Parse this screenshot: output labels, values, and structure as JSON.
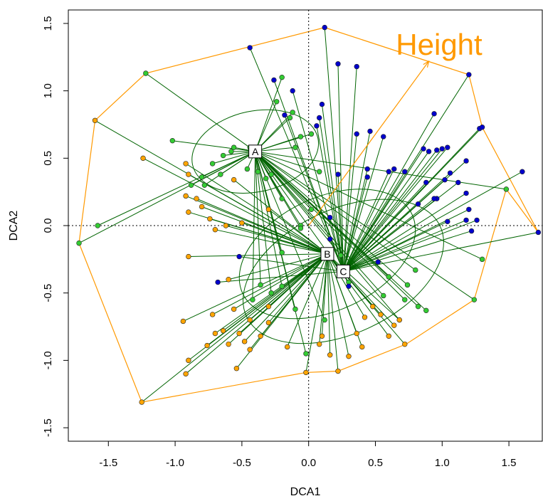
{
  "chart_data": {
    "type": "scatter",
    "title": "",
    "xlabel": "DCA1",
    "ylabel": "DCA2",
    "xlim": [
      -1.8,
      1.75
    ],
    "ylim": [
      -1.6,
      1.6
    ],
    "xticks": [
      -1.5,
      -1.0,
      -0.5,
      0.0,
      0.5,
      1.0,
      1.5
    ],
    "yticks": [
      -1.5,
      -1.0,
      -0.5,
      0.0,
      0.5,
      1.0,
      1.5
    ],
    "xtick_labels": [
      "-1.5",
      "-1.0",
      "-0.5",
      "0.0",
      "0.5",
      "1.0",
      "1.5"
    ],
    "ytick_labels": [
      "-1.5",
      "-1.0",
      "-0.5",
      "0.0",
      "0.5",
      "1.0",
      "1.5"
    ],
    "reference_lines": {
      "x": 0,
      "y": 0
    },
    "grid": false,
    "colors": {
      "group_a": "#33cc33",
      "group_b": "#ffa500",
      "group_c": "#0000cc",
      "spider": "#006400",
      "hull": "#ff9900",
      "arrow": "#ff9900"
    },
    "centroids": [
      {
        "label": "A",
        "x": -0.4,
        "y": 0.55,
        "ellipse": {
          "rx": 0.48,
          "ry": 0.3,
          "angle": 12
        }
      },
      {
        "label": "B",
        "x": 0.14,
        "y": -0.21,
        "ellipse": {
          "rx": 0.7,
          "ry": 0.42,
          "angle": 25
        }
      },
      {
        "label": "C",
        "x": 0.26,
        "y": -0.34,
        "ellipse": {
          "rx": 0.8,
          "ry": 0.46,
          "angle": 25
        }
      }
    ],
    "vector": {
      "label": "Height",
      "x": 0.9,
      "y": 1.22
    },
    "hull": [
      [
        0.12,
        1.47
      ],
      [
        1.2,
        1.12
      ],
      [
        1.3,
        0.73
      ],
      [
        1.72,
        -0.05
      ],
      [
        1.48,
        0.27
      ],
      [
        1.24,
        -0.55
      ],
      [
        0.73,
        -0.88
      ],
      [
        0.22,
        -1.08
      ],
      [
        -0.02,
        -1.09
      ],
      [
        -1.25,
        -1.31
      ],
      [
        -1.72,
        -0.13
      ],
      [
        -1.6,
        0.78
      ],
      [
        -1.22,
        1.13
      ]
    ],
    "points": [
      {
        "x": -0.44,
        "y": 0.58,
        "g": "a"
      },
      {
        "x": -0.2,
        "y": 1.1,
        "g": "a"
      },
      {
        "x": -0.24,
        "y": 0.92,
        "g": "a"
      },
      {
        "x": -0.38,
        "y": 0.4,
        "g": "a"
      },
      {
        "x": -0.12,
        "y": 0.84,
        "g": "a"
      },
      {
        "x": -0.32,
        "y": 0.35,
        "g": "a"
      },
      {
        "x": -0.2,
        "y": 0.2,
        "g": "a"
      },
      {
        "x": -0.1,
        "y": 0.58,
        "g": "a"
      },
      {
        "x": -0.56,
        "y": 0.58,
        "g": "a"
      },
      {
        "x": -0.64,
        "y": 0.52,
        "g": "a"
      },
      {
        "x": -0.72,
        "y": 0.46,
        "g": "a"
      },
      {
        "x": -0.8,
        "y": 0.36,
        "g": "a"
      },
      {
        "x": -0.88,
        "y": 0.3,
        "g": "a"
      },
      {
        "x": -0.66,
        "y": 0.38,
        "g": "a"
      },
      {
        "x": -0.46,
        "y": 0.42,
        "g": "a"
      },
      {
        "x": -0.28,
        "y": 0.38,
        "g": "a"
      },
      {
        "x": -0.06,
        "y": 0.66,
        "g": "a"
      },
      {
        "x": 0.02,
        "y": 0.68,
        "g": "a"
      },
      {
        "x": -1.02,
        "y": 0.63,
        "g": "a"
      },
      {
        "x": -0.78,
        "y": 0.3,
        "g": "a"
      },
      {
        "x": 0.02,
        "y": 0.12,
        "g": "a"
      },
      {
        "x": 0.08,
        "y": 0.4,
        "g": "a"
      },
      {
        "x": -0.14,
        "y": 0.8,
        "g": "a"
      },
      {
        "x": -0.58,
        "y": 0.55,
        "g": "a"
      },
      {
        "x": -0.06,
        "y": 0.0,
        "g": "a"
      },
      {
        "x": -1.22,
        "y": 1.13,
        "g": "a"
      },
      {
        "x": -1.72,
        "y": -0.13,
        "g": "a"
      },
      {
        "x": -1.58,
        "y": 0.0,
        "g": "a"
      },
      {
        "x": 1.48,
        "y": 0.27,
        "g": "a"
      },
      {
        "x": 1.3,
        "y": -0.25,
        "g": "a"
      },
      {
        "x": 1.24,
        "y": -0.55,
        "g": "a"
      },
      {
        "x": 0.8,
        "y": -0.33,
        "g": "a"
      },
      {
        "x": 0.74,
        "y": -0.44,
        "g": "a"
      },
      {
        "x": 0.72,
        "y": -0.55,
        "g": "a"
      },
      {
        "x": 0.82,
        "y": -0.6,
        "g": "a"
      },
      {
        "x": 0.88,
        "y": -0.63,
        "g": "a"
      },
      {
        "x": 0.6,
        "y": -0.38,
        "g": "a"
      },
      {
        "x": 0.56,
        "y": -0.52,
        "g": "a"
      },
      {
        "x": 0.68,
        "y": -0.7,
        "g": "a"
      },
      {
        "x": -0.28,
        "y": -0.5,
        "g": "a"
      },
      {
        "x": -0.36,
        "y": -0.44,
        "g": "a"
      },
      {
        "x": -0.42,
        "y": -0.55,
        "g": "a"
      },
      {
        "x": -0.2,
        "y": -0.45,
        "g": "a"
      },
      {
        "x": -0.2,
        "y": -0.2,
        "g": "a"
      },
      {
        "x": -0.1,
        "y": -0.62,
        "g": "a"
      },
      {
        "x": 0.12,
        "y": -0.7,
        "g": "a"
      },
      {
        "x": -0.02,
        "y": -0.95,
        "g": "a"
      },
      {
        "x": -0.06,
        "y": -0.02,
        "g": "a"
      },
      {
        "x": 0.24,
        "y": -0.22,
        "g": "a"
      },
      {
        "x": 0.3,
        "y": -0.42,
        "g": "a"
      },
      {
        "x": -1.24,
        "y": 0.5,
        "g": "b"
      },
      {
        "x": -1.6,
        "y": 0.78,
        "g": "b"
      },
      {
        "x": -0.92,
        "y": 0.46,
        "g": "b"
      },
      {
        "x": -0.9,
        "y": 0.38,
        "g": "b"
      },
      {
        "x": -0.84,
        "y": 0.2,
        "g": "b"
      },
      {
        "x": -0.9,
        "y": 0.1,
        "g": "b"
      },
      {
        "x": -0.92,
        "y": 0.22,
        "g": "b"
      },
      {
        "x": -0.8,
        "y": 0.14,
        "g": "b"
      },
      {
        "x": -0.74,
        "y": 0.05,
        "g": "b"
      },
      {
        "x": -0.7,
        "y": -0.03,
        "g": "b"
      },
      {
        "x": -0.62,
        "y": 0.0,
        "g": "b"
      },
      {
        "x": -0.5,
        "y": 0.02,
        "g": "b"
      },
      {
        "x": -0.56,
        "y": 0.34,
        "g": "b"
      },
      {
        "x": -0.3,
        "y": 0.12,
        "g": "b"
      },
      {
        "x": -0.94,
        "y": -0.71,
        "g": "b"
      },
      {
        "x": -0.9,
        "y": -0.23,
        "g": "b"
      },
      {
        "x": -0.9,
        "y": -1.0,
        "g": "b"
      },
      {
        "x": -0.92,
        "y": -1.1,
        "g": "b"
      },
      {
        "x": -1.25,
        "y": -1.31,
        "g": "b"
      },
      {
        "x": -0.76,
        "y": -0.89,
        "g": "b"
      },
      {
        "x": -0.7,
        "y": -0.8,
        "g": "b"
      },
      {
        "x": -0.72,
        "y": -0.66,
        "g": "b"
      },
      {
        "x": -0.64,
        "y": -0.78,
        "g": "b"
      },
      {
        "x": -0.6,
        "y": -0.88,
        "g": "b"
      },
      {
        "x": -0.52,
        "y": -0.8,
        "g": "b"
      },
      {
        "x": -0.44,
        "y": -0.92,
        "g": "b"
      },
      {
        "x": -0.36,
        "y": -0.82,
        "g": "b"
      },
      {
        "x": -0.3,
        "y": -0.72,
        "g": "b"
      },
      {
        "x": -0.16,
        "y": -0.9,
        "g": "b"
      },
      {
        "x": -0.02,
        "y": -1.09,
        "g": "b"
      },
      {
        "x": -0.54,
        "y": -1.06,
        "g": "b"
      },
      {
        "x": 0.1,
        "y": -0.82,
        "g": "b"
      },
      {
        "x": 0.16,
        "y": -0.96,
        "g": "b"
      },
      {
        "x": 0.22,
        "y": -1.08,
        "g": "b"
      },
      {
        "x": 0.3,
        "y": -0.97,
        "g": "b"
      },
      {
        "x": 0.36,
        "y": -0.8,
        "g": "b"
      },
      {
        "x": 0.42,
        "y": -0.68,
        "g": "b"
      },
      {
        "x": 0.48,
        "y": -0.6,
        "g": "b"
      },
      {
        "x": 0.4,
        "y": -0.9,
        "g": "b"
      },
      {
        "x": 0.6,
        "y": -0.82,
        "g": "b"
      },
      {
        "x": 0.64,
        "y": -0.74,
        "g": "b"
      },
      {
        "x": 0.72,
        "y": -0.88,
        "g": "b"
      },
      {
        "x": 0.54,
        "y": -0.66,
        "g": "b"
      },
      {
        "x": -0.56,
        "y": -0.62,
        "g": "b"
      },
      {
        "x": -0.6,
        "y": -0.4,
        "g": "b"
      },
      {
        "x": -0.3,
        "y": -0.6,
        "g": "b"
      },
      {
        "x": -0.44,
        "y": -0.7,
        "g": "b"
      },
      {
        "x": -0.48,
        "y": -0.86,
        "g": "b"
      },
      {
        "x": 0.08,
        "y": -0.88,
        "g": "b"
      },
      {
        "x": 0.68,
        "y": -0.7,
        "g": "b"
      },
      {
        "x": 0.12,
        "y": 1.47,
        "g": "c"
      },
      {
        "x": -0.44,
        "y": 1.32,
        "g": "c"
      },
      {
        "x": 0.22,
        "y": 1.2,
        "g": "c"
      },
      {
        "x": 0.36,
        "y": 1.18,
        "g": "c"
      },
      {
        "x": 1.2,
        "y": 1.12,
        "g": "c"
      },
      {
        "x": -0.26,
        "y": 1.08,
        "g": "c"
      },
      {
        "x": -0.12,
        "y": 1.0,
        "g": "c"
      },
      {
        "x": 0.1,
        "y": 0.9,
        "g": "c"
      },
      {
        "x": 0.08,
        "y": 0.8,
        "g": "c"
      },
      {
        "x": -0.18,
        "y": 0.82,
        "g": "c"
      },
      {
        "x": 0.06,
        "y": 0.74,
        "g": "c"
      },
      {
        "x": 0.36,
        "y": 0.68,
        "g": "c"
      },
      {
        "x": 0.46,
        "y": 0.7,
        "g": "c"
      },
      {
        "x": 0.56,
        "y": 0.66,
        "g": "c"
      },
      {
        "x": 0.94,
        "y": 0.83,
        "g": "c"
      },
      {
        "x": 1.28,
        "y": 0.72,
        "g": "c"
      },
      {
        "x": 1.3,
        "y": 0.73,
        "g": "c"
      },
      {
        "x": 1.6,
        "y": 0.4,
        "g": "c"
      },
      {
        "x": 1.72,
        "y": -0.05,
        "g": "c"
      },
      {
        "x": 0.9,
        "y": 0.55,
        "g": "c"
      },
      {
        "x": 0.96,
        "y": 0.56,
        "g": "c"
      },
      {
        "x": 1.0,
        "y": 0.57,
        "g": "c"
      },
      {
        "x": 1.04,
        "y": 0.58,
        "g": "c"
      },
      {
        "x": 0.86,
        "y": 0.57,
        "g": "c"
      },
      {
        "x": 1.18,
        "y": 0.48,
        "g": "c"
      },
      {
        "x": 0.64,
        "y": 0.42,
        "g": "c"
      },
      {
        "x": 0.6,
        "y": 0.4,
        "g": "c"
      },
      {
        "x": 0.44,
        "y": 0.42,
        "g": "c"
      },
      {
        "x": 0.44,
        "y": 0.36,
        "g": "c"
      },
      {
        "x": 0.22,
        "y": 0.38,
        "g": "c"
      },
      {
        "x": 1.12,
        "y": 0.32,
        "g": "c"
      },
      {
        "x": 1.18,
        "y": 0.24,
        "g": "c"
      },
      {
        "x": 1.2,
        "y": 0.12,
        "g": "c"
      },
      {
        "x": 1.02,
        "y": 0.34,
        "g": "c"
      },
      {
        "x": 1.06,
        "y": 0.39,
        "g": "c"
      },
      {
        "x": 0.96,
        "y": 0.2,
        "g": "c"
      },
      {
        "x": 0.88,
        "y": 0.32,
        "g": "c"
      },
      {
        "x": 0.94,
        "y": 0.2,
        "g": "c"
      },
      {
        "x": 1.26,
        "y": 0.04,
        "g": "c"
      },
      {
        "x": 1.18,
        "y": 0.04,
        "g": "c"
      },
      {
        "x": 1.22,
        "y": -0.04,
        "g": "c"
      },
      {
        "x": 1.04,
        "y": 0.03,
        "g": "c"
      },
      {
        "x": 0.82,
        "y": 0.16,
        "g": "c"
      },
      {
        "x": 0.72,
        "y": 0.4,
        "g": "c"
      },
      {
        "x": 0.16,
        "y": 0.06,
        "g": "c"
      },
      {
        "x": 0.16,
        "y": -0.1,
        "g": "c"
      },
      {
        "x": -0.52,
        "y": -0.23,
        "g": "c"
      },
      {
        "x": -0.68,
        "y": -0.42,
        "g": "c"
      },
      {
        "x": 0.52,
        "y": -0.27,
        "g": "c"
      },
      {
        "x": 0.3,
        "y": -0.45,
        "g": "c"
      }
    ]
  }
}
